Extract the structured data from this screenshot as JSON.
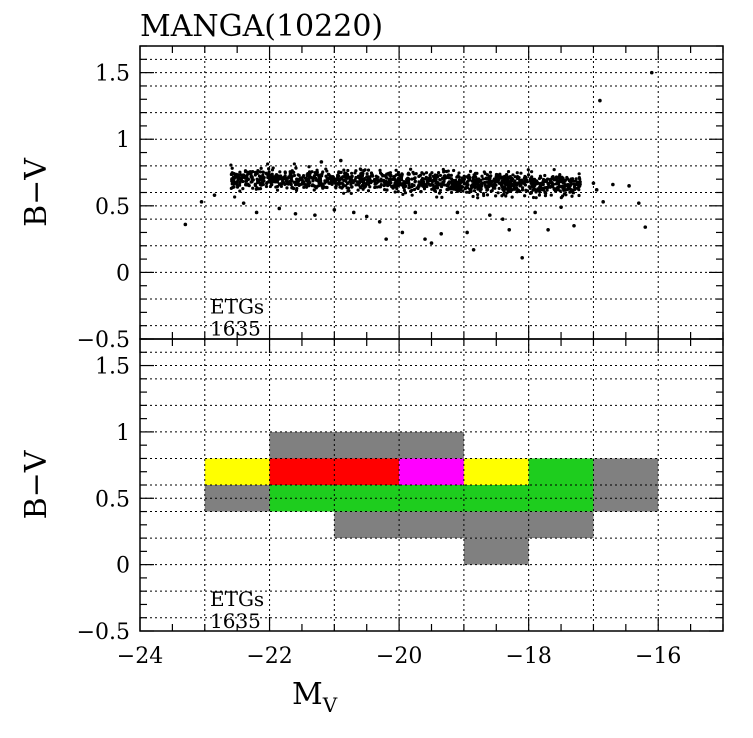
{
  "title": "MANGA(10220)",
  "colors": {
    "gray": "#808080",
    "yellow": "#ffff00",
    "red": "#ff0000",
    "magenta": "#ff00ff",
    "green": "#1ecd1e",
    "black": "#000000"
  },
  "chart_data": [
    {
      "type": "scatter",
      "panel": "top",
      "ylabel": "B−V",
      "xlim": [
        -24,
        -15
      ],
      "ylim": [
        -0.5,
        1.7
      ],
      "x_ticks": [
        "−24",
        "−22",
        "−20",
        "−18",
        "−16"
      ],
      "y_ticks": [
        "−0.5",
        "0",
        "0.5",
        "1",
        "1.5"
      ],
      "grid": true,
      "annotation": [
        "ETGs",
        "1635"
      ],
      "core": {
        "x_range": [
          -22.6,
          -17.2
        ],
        "y_center": 0.68,
        "y_spread": 0.07
      },
      "outliers": [
        [
          -23.3,
          0.36
        ],
        [
          -23.05,
          0.53
        ],
        [
          -22.85,
          0.58
        ],
        [
          -22.4,
          0.52
        ],
        [
          -22.2,
          0.45
        ],
        [
          -21.85,
          0.48
        ],
        [
          -21.6,
          0.44
        ],
        [
          -21.3,
          0.43
        ],
        [
          -21.0,
          0.47
        ],
        [
          -20.7,
          0.45
        ],
        [
          -20.5,
          0.42
        ],
        [
          -20.3,
          0.38
        ],
        [
          -20.2,
          0.25
        ],
        [
          -19.95,
          0.3
        ],
        [
          -19.75,
          0.45
        ],
        [
          -19.6,
          0.25
        ],
        [
          -19.5,
          0.22
        ],
        [
          -19.35,
          0.29
        ],
        [
          -19.1,
          0.45
        ],
        [
          -18.95,
          0.3
        ],
        [
          -18.85,
          0.17
        ],
        [
          -18.6,
          0.43
        ],
        [
          -18.4,
          0.4
        ],
        [
          -18.3,
          0.32
        ],
        [
          -18.1,
          0.11
        ],
        [
          -17.9,
          0.45
        ],
        [
          -17.7,
          0.32
        ],
        [
          -17.5,
          0.49
        ],
        [
          -17.3,
          0.35
        ],
        [
          -17.0,
          0.67
        ],
        [
          -16.95,
          0.62
        ],
        [
          -16.85,
          0.53
        ],
        [
          -16.7,
          0.66
        ],
        [
          -16.45,
          0.65
        ],
        [
          -16.3,
          0.52
        ],
        [
          -16.2,
          0.34
        ],
        [
          -16.9,
          1.29
        ],
        [
          -16.1,
          1.5
        ],
        [
          -21.2,
          0.83
        ],
        [
          -20.9,
          0.84
        ]
      ]
    },
    {
      "type": "heatmap",
      "panel": "bottom",
      "xlabel": "M_V",
      "ylabel": "B−V",
      "xlim": [
        -24,
        -15
      ],
      "ylim": [
        -0.5,
        1.7
      ],
      "x_ticks": [
        "−24",
        "−22",
        "−20",
        "−18",
        "−16"
      ],
      "y_ticks": [
        "−0.5",
        "0",
        "0.5",
        "1",
        "1.5"
      ],
      "grid": true,
      "annotation": [
        "ETGs",
        "1635"
      ],
      "cells": [
        {
          "x0": -22,
          "x1": -19,
          "y0": 0.8,
          "y1": 1.0,
          "color": "gray"
        },
        {
          "x0": -23,
          "x1": -22,
          "y0": 0.6,
          "y1": 0.8,
          "color": "yellow"
        },
        {
          "x0": -22,
          "x1": -20,
          "y0": 0.6,
          "y1": 0.8,
          "color": "red"
        },
        {
          "x0": -20,
          "x1": -19,
          "y0": 0.6,
          "y1": 0.8,
          "color": "magenta"
        },
        {
          "x0": -19,
          "x1": -18,
          "y0": 0.6,
          "y1": 0.8,
          "color": "yellow"
        },
        {
          "x0": -18,
          "x1": -17,
          "y0": 0.6,
          "y1": 0.8,
          "color": "green"
        },
        {
          "x0": -17,
          "x1": -16,
          "y0": 0.6,
          "y1": 0.8,
          "color": "gray"
        },
        {
          "x0": -23,
          "x1": -22,
          "y0": 0.4,
          "y1": 0.6,
          "color": "gray"
        },
        {
          "x0": -22,
          "x1": -17,
          "y0": 0.4,
          "y1": 0.6,
          "color": "green"
        },
        {
          "x0": -17,
          "x1": -16,
          "y0": 0.4,
          "y1": 0.6,
          "color": "gray"
        },
        {
          "x0": -21,
          "x1": -17,
          "y0": 0.2,
          "y1": 0.4,
          "color": "gray"
        },
        {
          "x0": -19,
          "x1": -18,
          "y0": 0.0,
          "y1": 0.2,
          "color": "gray"
        }
      ]
    }
  ]
}
